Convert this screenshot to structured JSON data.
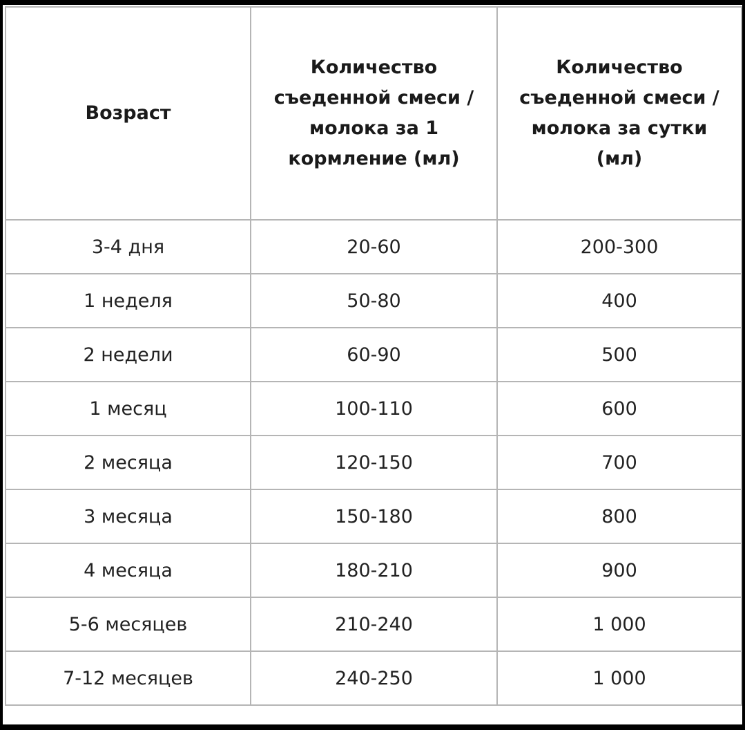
{
  "table": {
    "headers": [
      "Возраст",
      "Количество съеденной смеси / молока за 1 кормление (мл)",
      "Количество съеденной смеси / молока за сутки (мл)"
    ],
    "rows": [
      [
        "3-4 дня",
        "20-60",
        "200-300"
      ],
      [
        "1 неделя",
        "50-80",
        "400"
      ],
      [
        "2 недели",
        "60-90",
        "500"
      ],
      [
        "1 месяц",
        "100-110",
        "600"
      ],
      [
        "2 месяца",
        "120-150",
        "700"
      ],
      [
        "3 месяца",
        "150-180",
        "800"
      ],
      [
        "4 месяца",
        "180-210",
        "900"
      ],
      [
        "5-6 месяцев",
        "210-240",
        "1 000"
      ],
      [
        "7-12 месяцев",
        "240-250",
        "1 000"
      ]
    ]
  }
}
